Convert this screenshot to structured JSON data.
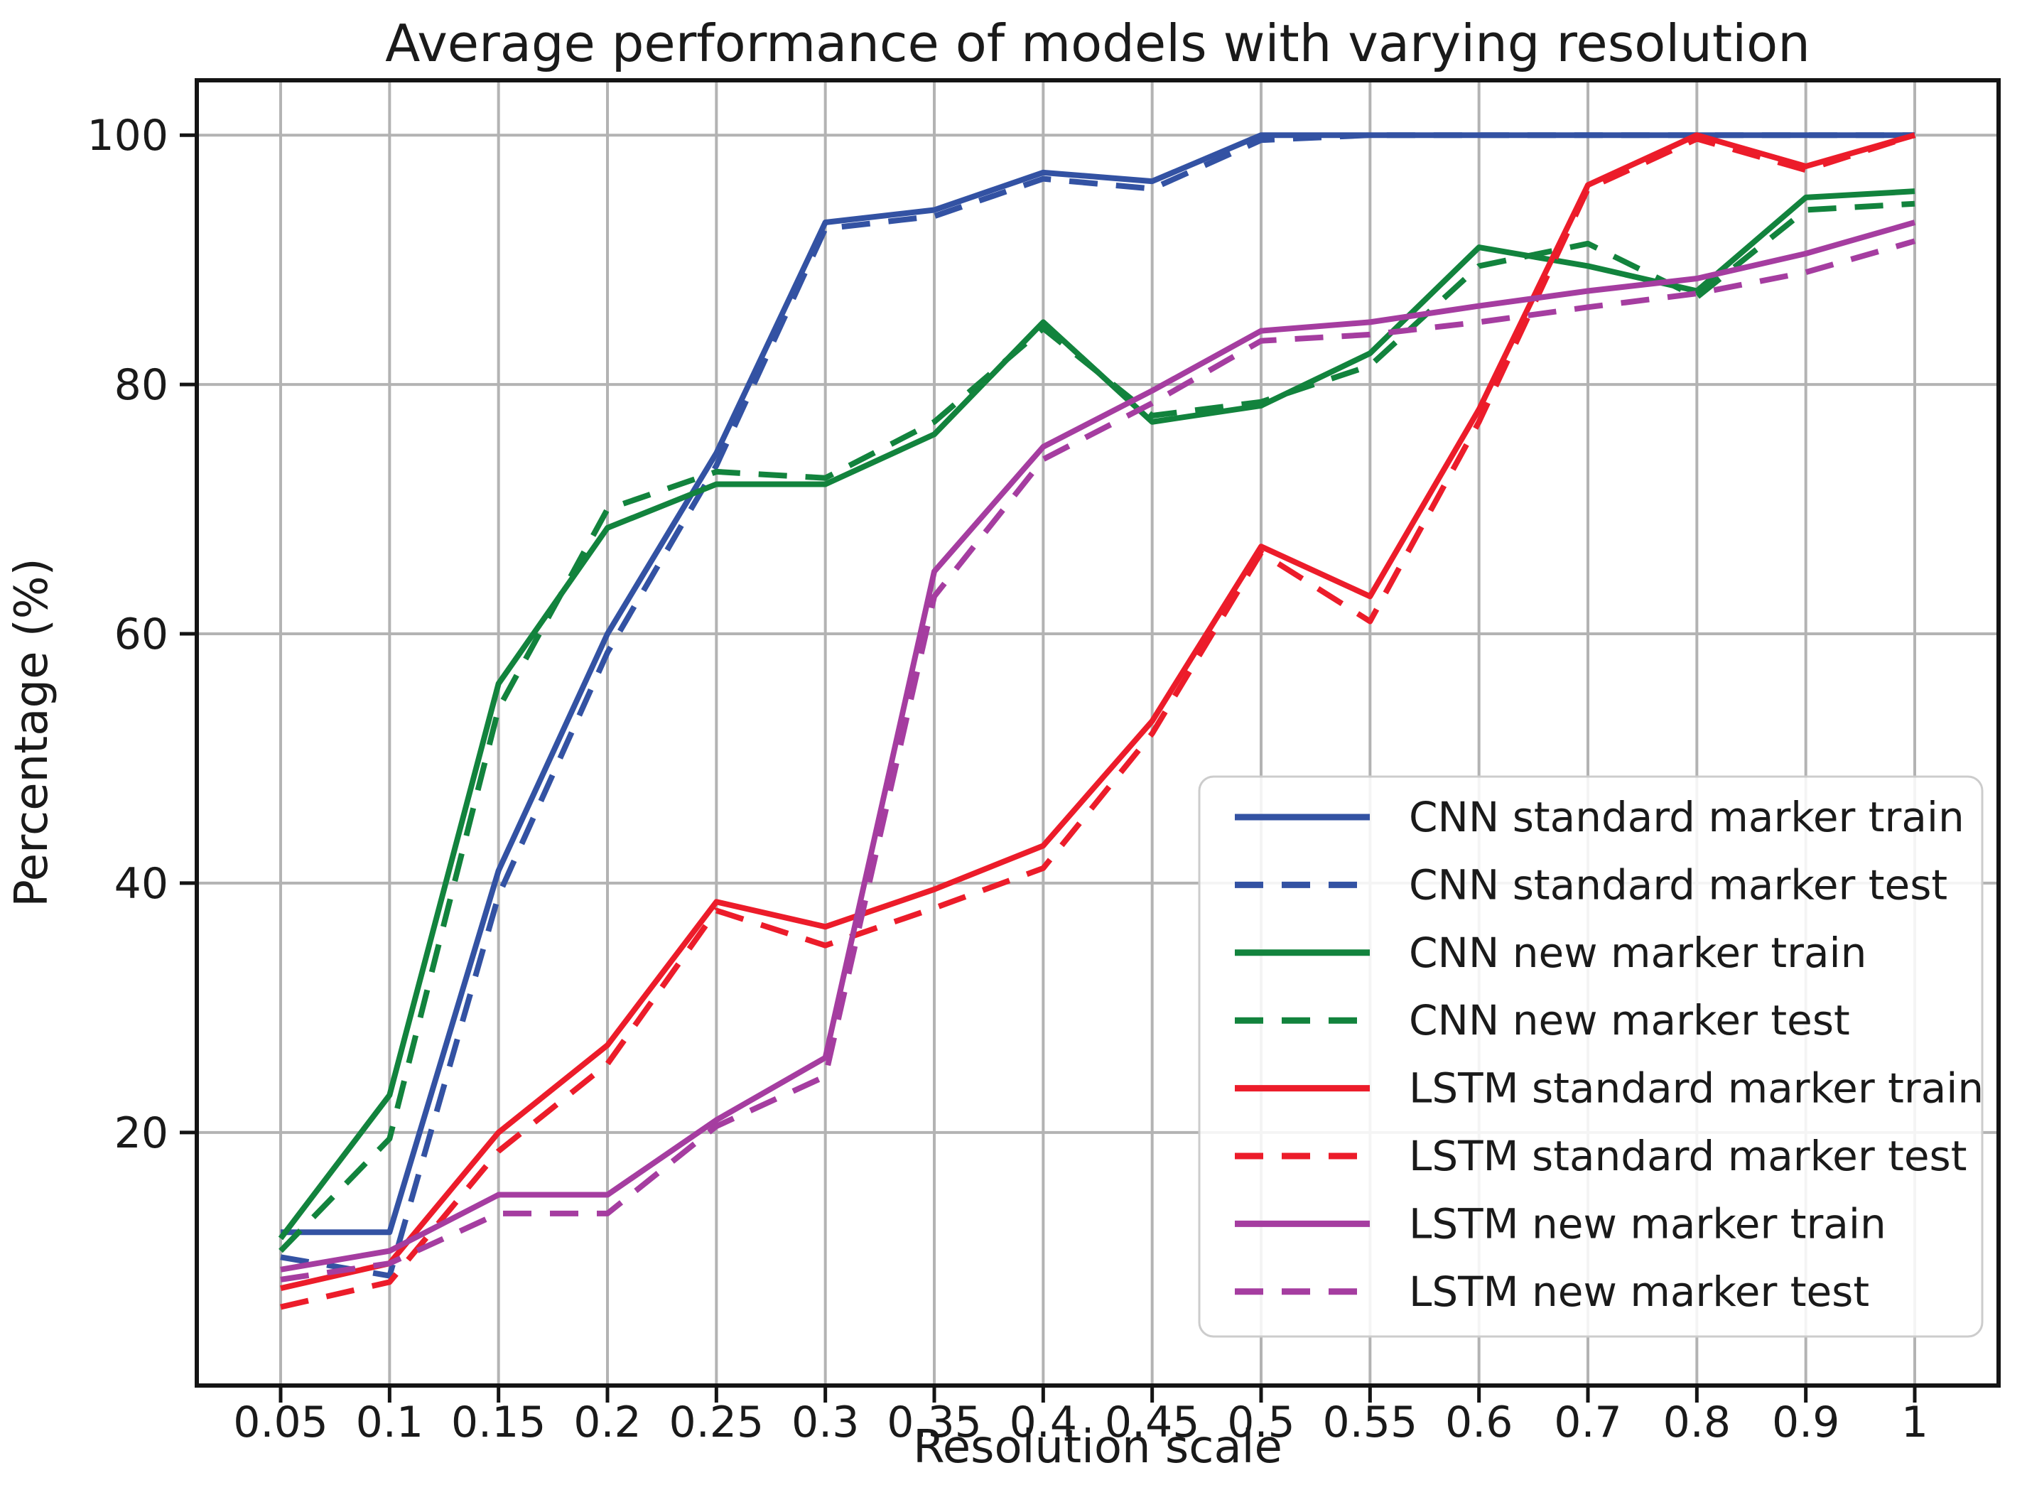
{
  "figure": {
    "background": "#ffffff",
    "grid_color": "#b3b3b3",
    "spine_color": "#141414",
    "text_color": "#1a1a1a",
    "legend_face": "rgba(255,255,255,0.85)",
    "legend_edge": "#cccccc"
  },
  "chart_data": {
    "type": "line",
    "title": "Average performance of models with varying resolution",
    "xlabel": "Resolution scale",
    "ylabel": "Percentage (%)",
    "x_tick_labels": [
      "0.05",
      "0.1",
      "0.15",
      "0.2",
      "0.25",
      "0.3",
      "0.35",
      "0.4",
      "0.45",
      "0.5",
      "0.55",
      "0.6",
      "0.7",
      "0.8",
      "0.9",
      "1"
    ],
    "y_ticks": [
      20,
      40,
      60,
      80,
      100
    ],
    "ylim": [
      -0.3,
      104.4
    ],
    "grid": true,
    "legend_position": "inside right, vertically centered-low",
    "series": [
      {
        "name": "CNN standard marker train",
        "color": "#3352a3",
        "style": "solid",
        "values": [
          12,
          12,
          41,
          60,
          74.5,
          93,
          94,
          97,
          96.3,
          100,
          100,
          100,
          100,
          100,
          100,
          100
        ]
      },
      {
        "name": "CNN standard marker test",
        "color": "#3352a3",
        "style": "dashed",
        "values": [
          10,
          8.5,
          39,
          58.5,
          73.5,
          92.5,
          93.5,
          96.5,
          95.7,
          99.6,
          100,
          100,
          100,
          100,
          100,
          100
        ]
      },
      {
        "name": "CNN new marker train",
        "color": "#12833d",
        "style": "solid",
        "values": [
          11.5,
          23,
          56,
          68.5,
          72,
          72,
          76,
          85,
          77,
          78.3,
          82.5,
          91,
          89.5,
          87.5,
          95,
          95.5
        ]
      },
      {
        "name": "CNN new marker test",
        "color": "#12833d",
        "style": "dashed",
        "values": [
          10.5,
          19.5,
          54,
          70,
          73,
          72.5,
          77,
          84.5,
          77.5,
          78.6,
          81.5,
          89.5,
          91.3,
          87,
          94,
          94.5
        ]
      },
      {
        "name": "LSTM standard marker train",
        "color": "#ec1c2a",
        "style": "solid",
        "values": [
          7.5,
          9.5,
          20,
          27,
          38.5,
          36.5,
          39.5,
          43,
          53,
          67,
          63,
          78,
          96,
          100,
          97.5,
          100
        ]
      },
      {
        "name": "LSTM standard marker test",
        "color": "#ec1c2a",
        "style": "dashed",
        "values": [
          6,
          8,
          18.5,
          25.5,
          37.8,
          35,
          38,
          41.2,
          52,
          66.5,
          61,
          77,
          95.7,
          99.7,
          97.2,
          100
        ]
      },
      {
        "name": "LSTM new marker train",
        "color": "#a53da0",
        "style": "solid",
        "values": [
          9,
          10.5,
          15,
          15,
          21,
          26,
          65,
          75,
          79.5,
          84.3,
          85,
          86.3,
          87.5,
          88.5,
          90.5,
          93
        ]
      },
      {
        "name": "LSTM new marker test",
        "color": "#a53da0",
        "style": "dashed",
        "values": [
          8.2,
          9.5,
          13.5,
          13.5,
          20.5,
          24.5,
          63,
          74,
          78.5,
          83.5,
          84,
          85,
          86.2,
          87.3,
          89,
          91.5
        ]
      }
    ]
  }
}
